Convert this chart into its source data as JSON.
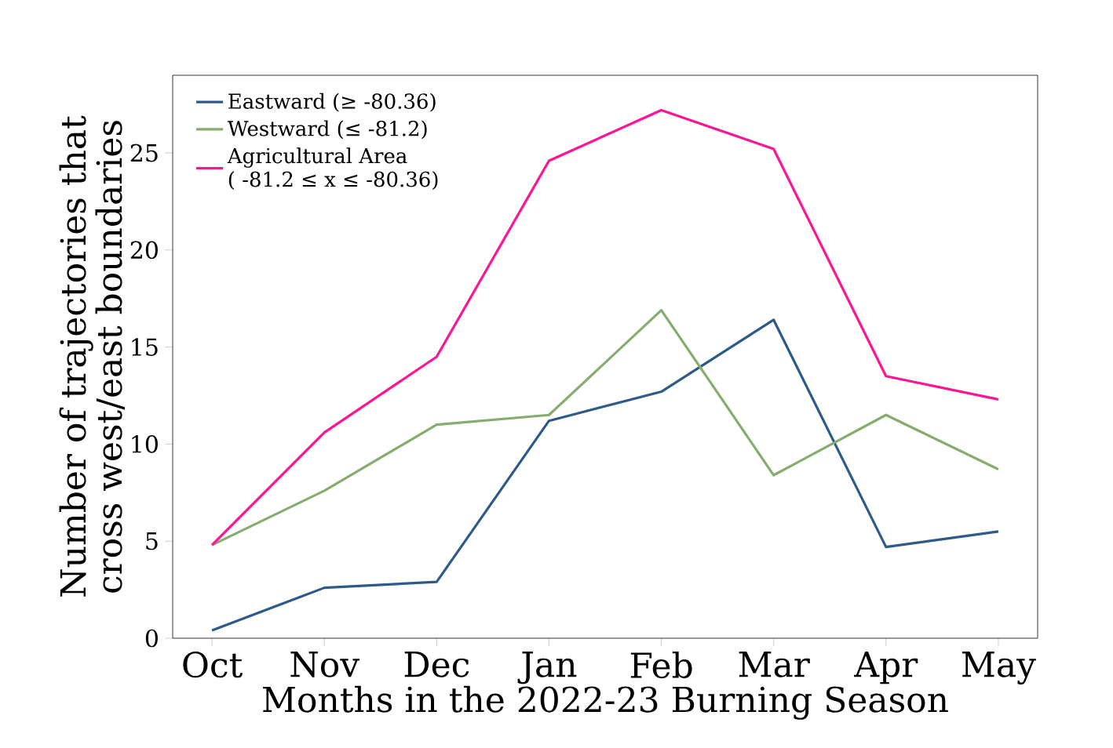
{
  "chart_data": {
    "type": "line",
    "xlabel": "Months in the 2022-23 Burning Season",
    "ylabel": "Number of trajectories that\ncross west/east boundaries",
    "categories": [
      "Oct",
      "Nov",
      "Dec",
      "Jan",
      "Feb",
      "Mar",
      "Apr",
      "May"
    ],
    "series": [
      {
        "name": "Eastward (≥ -80.36)",
        "color": "#2e5a8a",
        "values": [
          0.4,
          2.6,
          2.9,
          11.2,
          12.7,
          16.4,
          4.7,
          5.5
        ]
      },
      {
        "name": "Westward (≤ -81.2)",
        "color": "#86ad6f",
        "values": [
          4.8,
          7.6,
          11.0,
          11.5,
          16.9,
          8.4,
          11.5,
          8.7
        ]
      },
      {
        "name": "Agricultural Area\n( -81.2 ≤ x ≤ -80.36)",
        "color": "#ff1493",
        "values": [
          4.8,
          10.6,
          14.5,
          24.6,
          27.2,
          25.2,
          13.5,
          12.3
        ]
      }
    ],
    "ylim": [
      0,
      29
    ],
    "yticks": [
      0,
      5,
      10,
      15,
      20,
      25
    ],
    "legend": "top left",
    "grid": false,
    "marker": "none",
    "line_style": "solid"
  }
}
